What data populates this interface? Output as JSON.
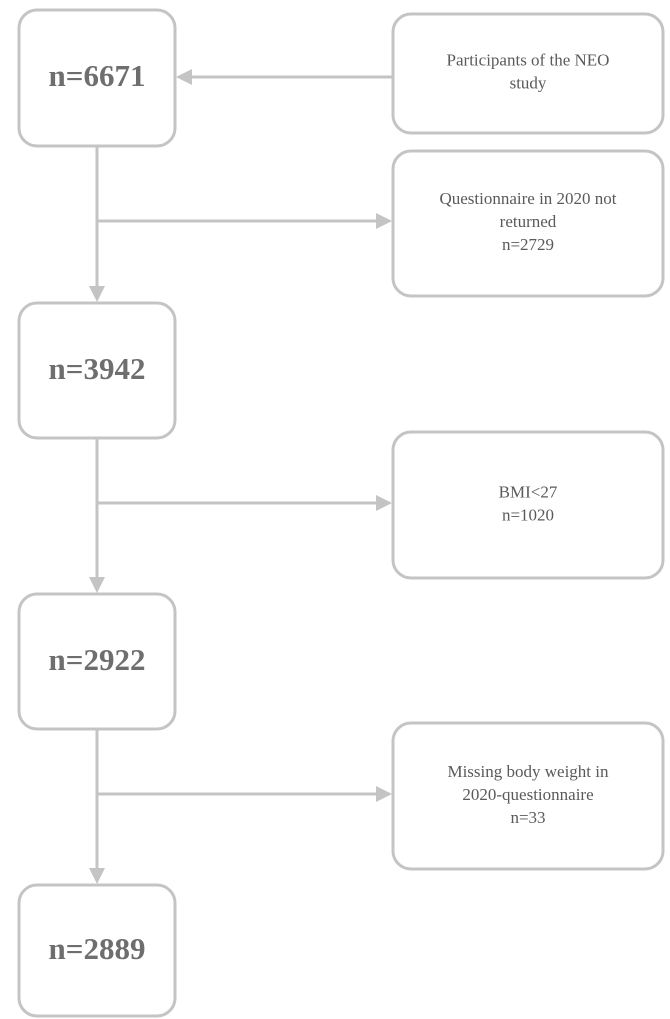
{
  "main_nodes": [
    {
      "label": "n=6671"
    },
    {
      "label": "n=3942"
    },
    {
      "label": "n=2922"
    },
    {
      "label": "n=2889"
    }
  ],
  "side_nodes": [
    {
      "lines": [
        "Participants of the NEO",
        "study"
      ]
    },
    {
      "lines": [
        "Questionnaire in 2020 not",
        "returned",
        "n=2729"
      ]
    },
    {
      "lines": [
        "BMI<27",
        "n=1020"
      ]
    },
    {
      "lines": [
        "Missing body weight in",
        "2020-questionnaire",
        "n=33"
      ]
    }
  ]
}
